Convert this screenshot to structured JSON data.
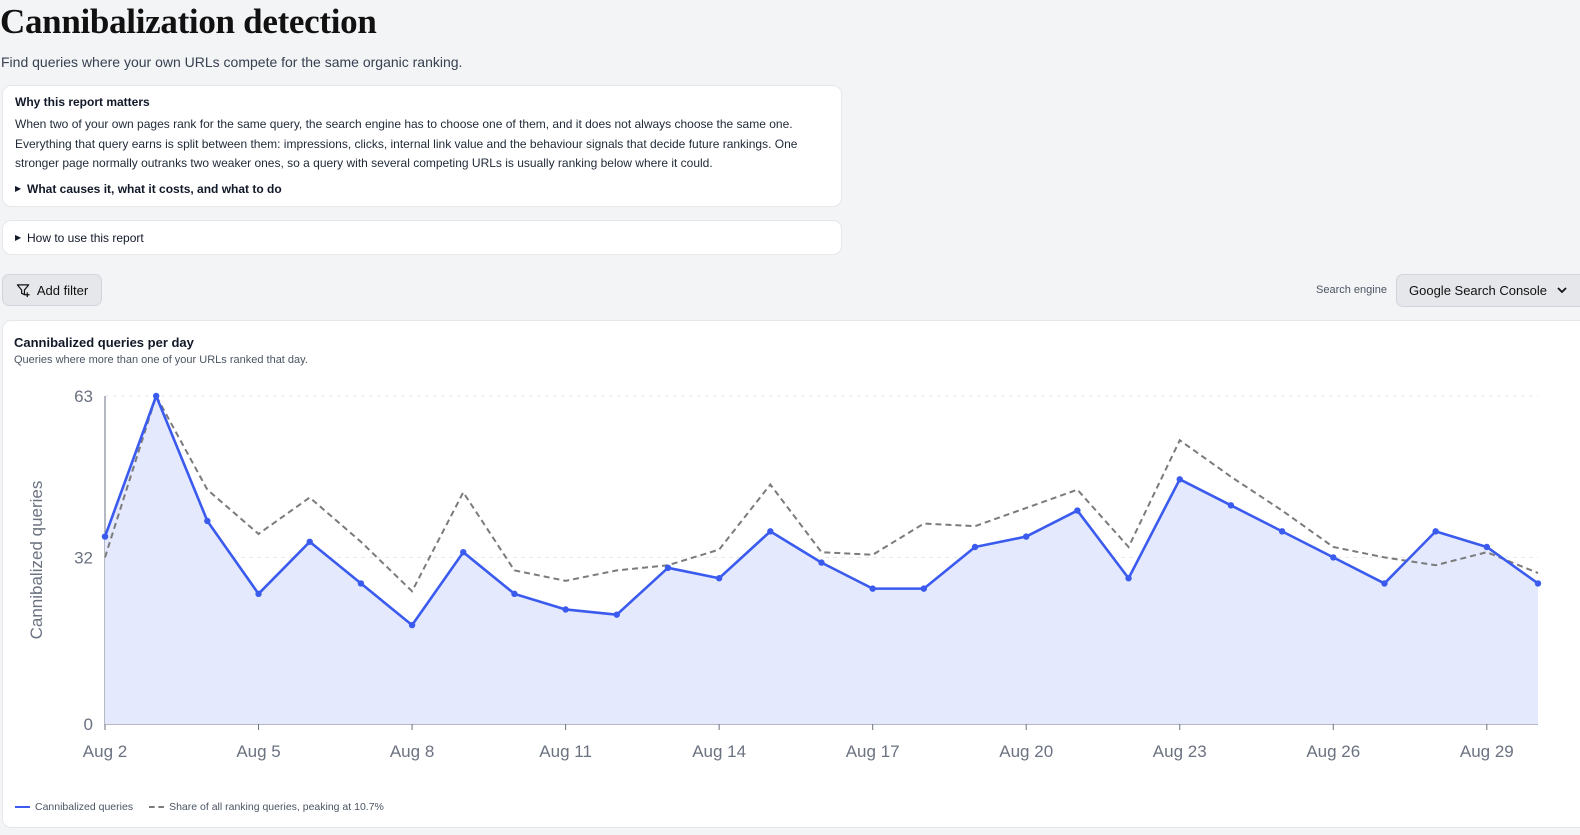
{
  "page": {
    "title": "Cannibalization detection",
    "subtitle": "Find queries where your own URLs compete for the same organic ranking."
  },
  "why": {
    "title": "Why this report matters",
    "body_lines": [
      "When two of your own pages rank for the same query, the search engine has to choose one of them, and it does not always choose the same one.",
      "Everything that query earns is split between them: impressions, clicks, internal link value and the behaviour signals that decide future rankings. One",
      "stronger page normally outranks two weaker ones, so a query with several competing URLs is usually ranking below where it could."
    ],
    "details_label": "What causes it, what it costs, and what to do"
  },
  "howto": {
    "details_label": "How to use this report"
  },
  "toolbar": {
    "add_filter_label": "Add filter",
    "search_engine_label": "Search engine",
    "search_engine_value": "Google Search Console"
  },
  "chart_card": {
    "title": "Cannibalized queries per day",
    "subtitle": "Queries where more than one of your URLs ranked that day."
  },
  "colors": {
    "primary": "#3b5bef",
    "area": "#e4e9fd",
    "secondary": "#7b7b7b"
  },
  "chart_data": {
    "type": "line",
    "x": [
      "Aug 2",
      "Aug 3",
      "Aug 4",
      "Aug 5",
      "Aug 6",
      "Aug 7",
      "Aug 8",
      "Aug 9",
      "Aug 10",
      "Aug 11",
      "Aug 12",
      "Aug 13",
      "Aug 14",
      "Aug 15",
      "Aug 16",
      "Aug 17",
      "Aug 18",
      "Aug 19",
      "Aug 20",
      "Aug 21",
      "Aug 22",
      "Aug 23",
      "Aug 24",
      "Aug 25",
      "Aug 26",
      "Aug 27",
      "Aug 28",
      "Aug 29",
      "Aug 30"
    ],
    "x_tick_labels": [
      "Aug 2",
      "Aug 5",
      "Aug 8",
      "Aug 11",
      "Aug 14",
      "Aug 17",
      "Aug 20",
      "Aug 23",
      "Aug 26",
      "Aug 29"
    ],
    "y_ticks": [
      0,
      32,
      63
    ],
    "ylim": [
      0,
      63
    ],
    "ylabel": "Cannibalized queries",
    "grid": true,
    "legend_position": "bottom-left",
    "series": [
      {
        "name": "Cannibalized queries",
        "style": "solid-area",
        "values": [
          36,
          63,
          39,
          25,
          35,
          27,
          19,
          33,
          25,
          22,
          21,
          30,
          28,
          37,
          31,
          26,
          26,
          34,
          36,
          41,
          28,
          47,
          42,
          37,
          32,
          27,
          37,
          34,
          27
        ]
      },
      {
        "name": "Share of all ranking queries, peaking at 10.7%",
        "style": "dashed",
        "values": [
          32,
          63,
          45,
          36.5,
          43.5,
          35,
          25.5,
          44.5,
          29.5,
          27.5,
          29.5,
          30.5,
          33.5,
          46,
          33,
          32.5,
          38.5,
          38,
          41.5,
          45,
          34,
          54.5,
          47.5,
          41,
          34,
          32,
          30.5,
          33,
          29
        ]
      }
    ]
  }
}
